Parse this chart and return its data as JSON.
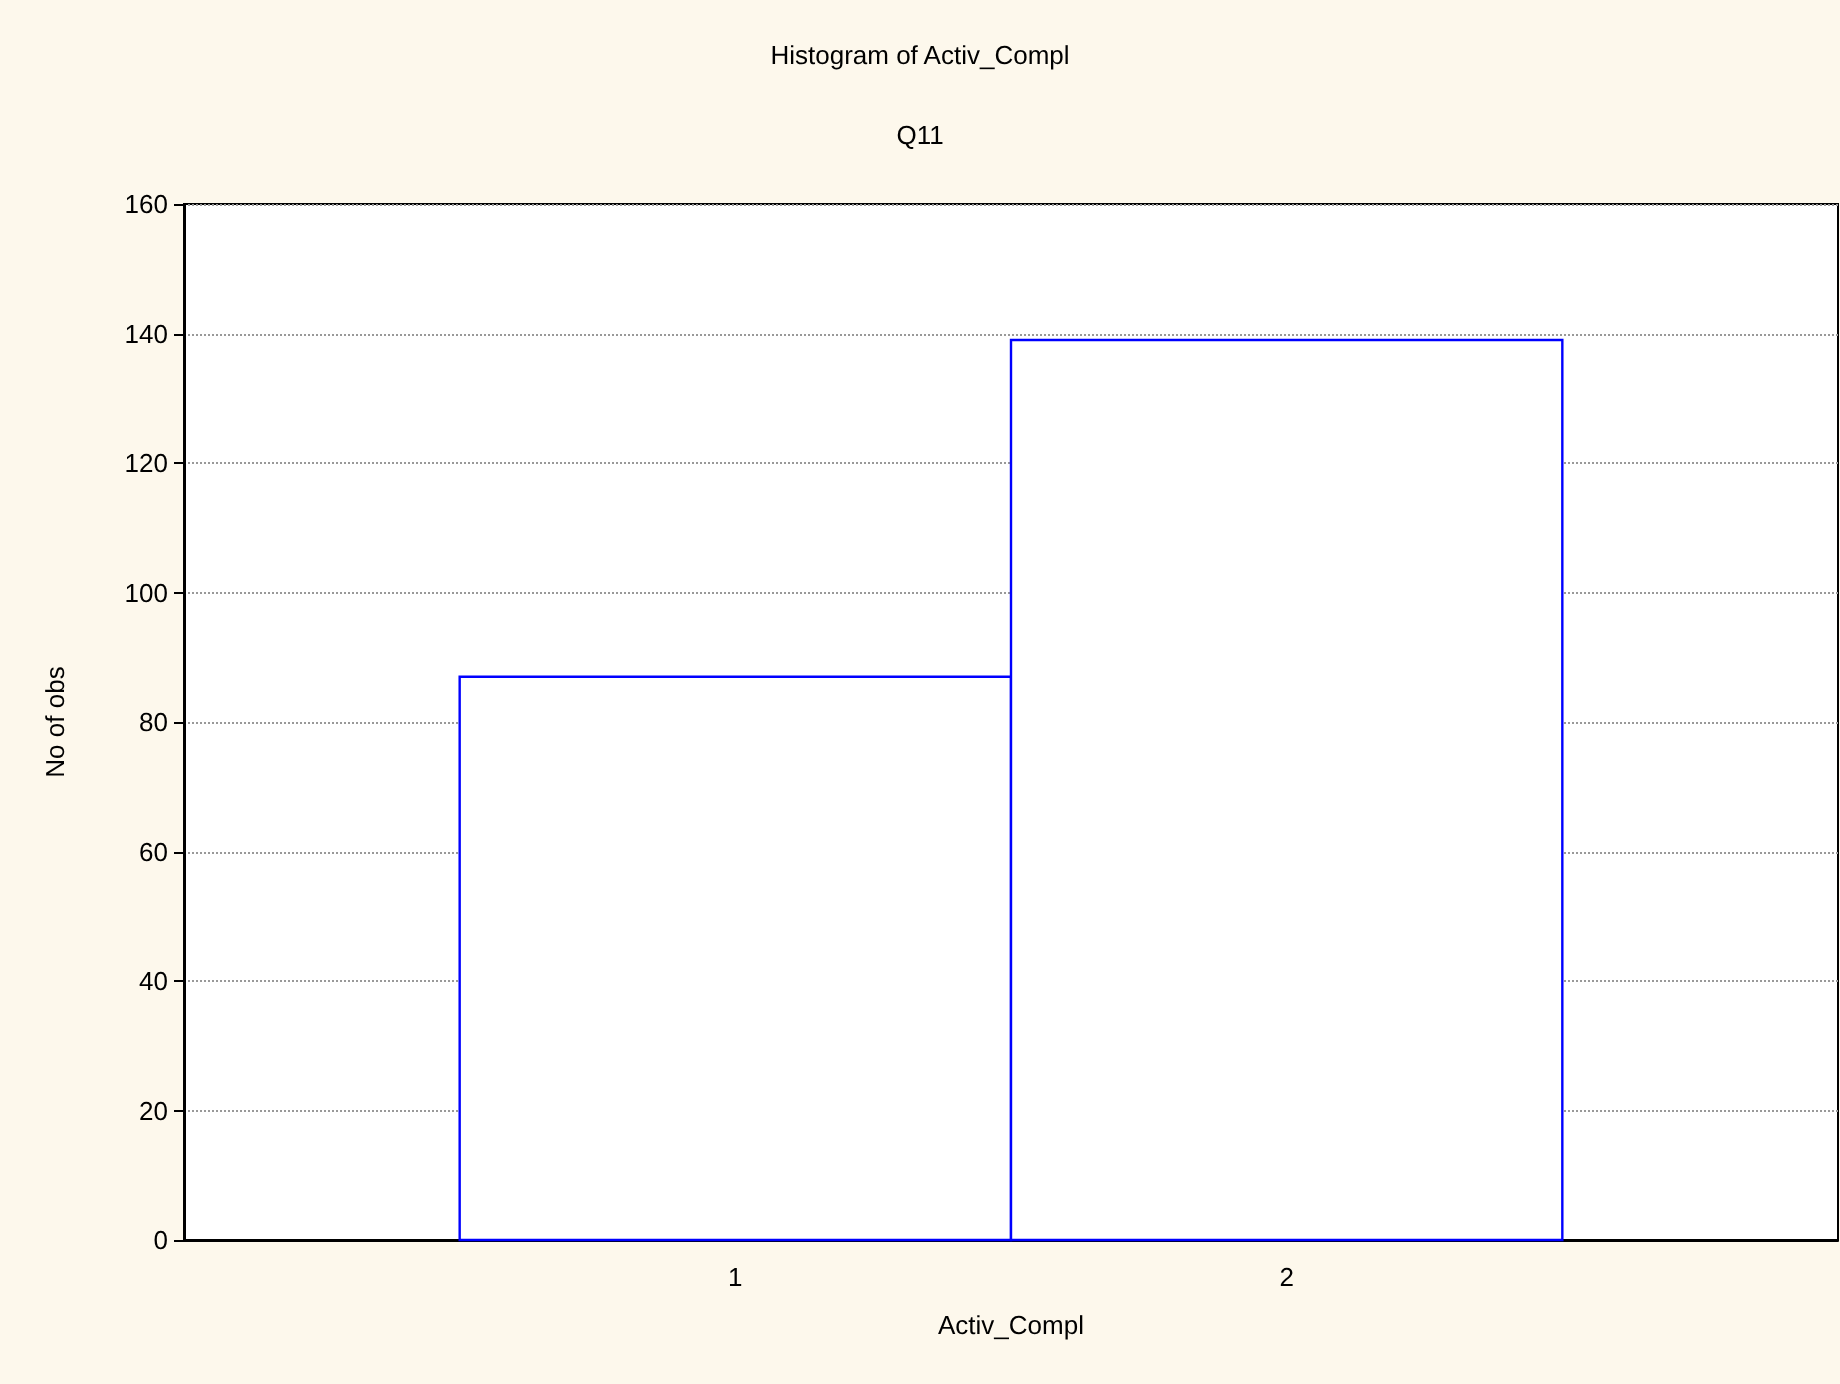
{
  "chart_data": {
    "type": "histogram",
    "title": "Histogram of Activ_Compl",
    "subtitle": "Q11",
    "xlabel": "Activ_Compl",
    "ylabel": "No of obs",
    "bins": [
      0.5,
      1.5,
      2.5
    ],
    "values": [
      87,
      139
    ],
    "color": "#0000ff",
    "xlim": [
      0,
      3
    ],
    "xticks": [
      1,
      2
    ],
    "ylim": [
      0,
      160
    ],
    "yticks": [
      0,
      20,
      40,
      60,
      80,
      100,
      120,
      140,
      160
    ],
    "grid": "y"
  }
}
